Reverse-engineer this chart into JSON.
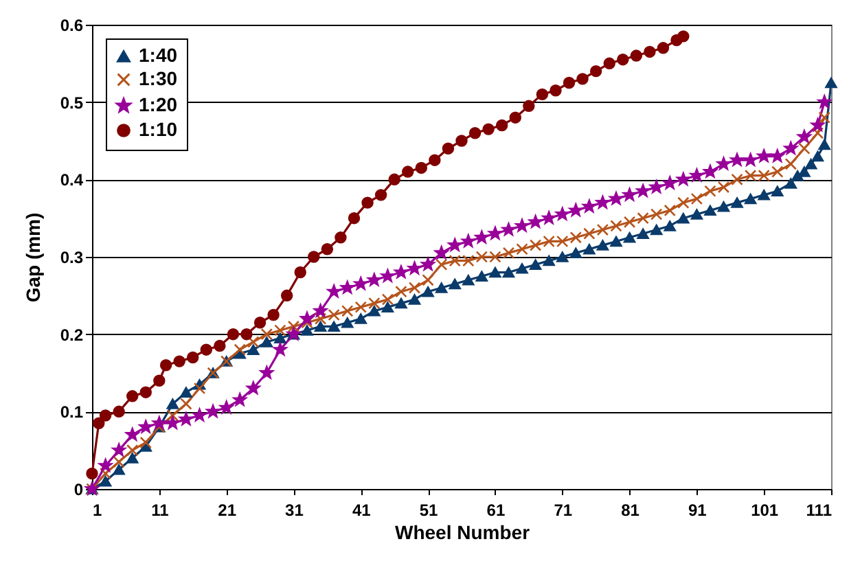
{
  "chart_data": {
    "type": "line",
    "xlabel": "Wheel Number",
    "ylabel": "Gap (mm)",
    "xlim": [
      1,
      111
    ],
    "xticks": [
      1,
      11,
      21,
      31,
      41,
      51,
      61,
      71,
      81,
      91,
      101,
      111
    ],
    "ylim": [
      0,
      0.6
    ],
    "yticks": [
      0,
      0.1,
      0.2,
      0.3,
      0.4,
      0.5,
      0.6
    ],
    "grid": "y",
    "legend": "top left",
    "series": [
      {
        "name": "1:40",
        "color": "#0b3b6b",
        "marker": "triangle",
        "x": [
          1,
          3,
          5,
          7,
          9,
          11,
          13,
          15,
          17,
          19,
          21,
          23,
          25,
          27,
          29,
          31,
          33,
          35,
          37,
          39,
          41,
          43,
          45,
          47,
          49,
          51,
          53,
          55,
          57,
          59,
          61,
          63,
          65,
          67,
          69,
          71,
          73,
          75,
          77,
          79,
          81,
          83,
          85,
          87,
          89,
          91,
          93,
          95,
          97,
          99,
          101,
          103,
          105,
          106,
          107,
          108,
          109,
          110,
          111
        ],
        "values": [
          0,
          0.01,
          0.025,
          0.04,
          0.055,
          0.08,
          0.11,
          0.125,
          0.135,
          0.15,
          0.165,
          0.175,
          0.18,
          0.19,
          0.195,
          0.2,
          0.205,
          0.21,
          0.21,
          0.215,
          0.22,
          0.23,
          0.235,
          0.24,
          0.245,
          0.255,
          0.26,
          0.265,
          0.27,
          0.275,
          0.28,
          0.28,
          0.285,
          0.29,
          0.295,
          0.3,
          0.305,
          0.31,
          0.315,
          0.32,
          0.325,
          0.33,
          0.335,
          0.34,
          0.35,
          0.355,
          0.36,
          0.365,
          0.37,
          0.375,
          0.38,
          0.385,
          0.395,
          0.405,
          0.41,
          0.42,
          0.43,
          0.445,
          0.525
        ]
      },
      {
        "name": "1:30",
        "color": "#b5541c",
        "marker": "cross",
        "x": [
          1,
          3,
          5,
          7,
          9,
          11,
          13,
          15,
          17,
          19,
          21,
          23,
          25,
          27,
          29,
          31,
          33,
          35,
          37,
          39,
          41,
          43,
          45,
          47,
          49,
          51,
          53,
          55,
          57,
          59,
          61,
          63,
          65,
          67,
          69,
          71,
          73,
          75,
          77,
          79,
          81,
          83,
          85,
          87,
          89,
          91,
          93,
          95,
          97,
          99,
          101,
          103,
          105,
          107,
          109,
          110
        ],
        "values": [
          0,
          0.02,
          0.035,
          0.05,
          0.06,
          0.08,
          0.095,
          0.11,
          0.13,
          0.15,
          0.165,
          0.18,
          0.19,
          0.2,
          0.205,
          0.21,
          0.215,
          0.22,
          0.225,
          0.23,
          0.235,
          0.24,
          0.245,
          0.255,
          0.26,
          0.27,
          0.29,
          0.295,
          0.295,
          0.3,
          0.3,
          0.305,
          0.31,
          0.315,
          0.32,
          0.32,
          0.325,
          0.33,
          0.335,
          0.34,
          0.345,
          0.35,
          0.355,
          0.36,
          0.37,
          0.375,
          0.385,
          0.39,
          0.4,
          0.405,
          0.405,
          0.41,
          0.42,
          0.44,
          0.46,
          0.48
        ]
      },
      {
        "name": "1:20",
        "color": "#990099",
        "marker": "star",
        "x": [
          1,
          3,
          5,
          7,
          9,
          11,
          13,
          15,
          17,
          19,
          21,
          23,
          25,
          27,
          29,
          31,
          33,
          35,
          37,
          39,
          41,
          43,
          45,
          47,
          49,
          51,
          53,
          55,
          57,
          59,
          61,
          63,
          65,
          67,
          69,
          71,
          73,
          75,
          77,
          79,
          81,
          83,
          85,
          87,
          89,
          91,
          93,
          95,
          97,
          99,
          101,
          103,
          105,
          107,
          109,
          110
        ],
        "values": [
          0,
          0.03,
          0.05,
          0.07,
          0.08,
          0.085,
          0.085,
          0.09,
          0.095,
          0.1,
          0.105,
          0.115,
          0.13,
          0.15,
          0.18,
          0.2,
          0.22,
          0.23,
          0.255,
          0.26,
          0.265,
          0.27,
          0.275,
          0.28,
          0.285,
          0.29,
          0.305,
          0.315,
          0.32,
          0.325,
          0.33,
          0.335,
          0.34,
          0.345,
          0.35,
          0.355,
          0.36,
          0.365,
          0.37,
          0.375,
          0.38,
          0.385,
          0.39,
          0.395,
          0.4,
          0.405,
          0.41,
          0.42,
          0.425,
          0.425,
          0.43,
          0.43,
          0.44,
          0.455,
          0.47,
          0.5
        ]
      },
      {
        "name": "1:10",
        "color": "#800000",
        "marker": "circle",
        "x": [
          1,
          2,
          3,
          5,
          7,
          9,
          11,
          12,
          14,
          16,
          18,
          20,
          22,
          24,
          26,
          28,
          30,
          32,
          34,
          36,
          38,
          40,
          42,
          44,
          46,
          48,
          50,
          52,
          54,
          56,
          58,
          60,
          62,
          64,
          66,
          68,
          70,
          72,
          74,
          76,
          78,
          80,
          82,
          84,
          86,
          88,
          89
        ],
        "values": [
          0.02,
          0.085,
          0.095,
          0.1,
          0.12,
          0.125,
          0.14,
          0.16,
          0.165,
          0.17,
          0.18,
          0.185,
          0.2,
          0.2,
          0.215,
          0.225,
          0.25,
          0.28,
          0.3,
          0.31,
          0.325,
          0.35,
          0.37,
          0.38,
          0.4,
          0.41,
          0.415,
          0.425,
          0.44,
          0.45,
          0.46,
          0.465,
          0.47,
          0.48,
          0.495,
          0.51,
          0.515,
          0.525,
          0.53,
          0.54,
          0.55,
          0.555,
          0.56,
          0.565,
          0.57,
          0.58,
          0.585
        ]
      }
    ]
  }
}
